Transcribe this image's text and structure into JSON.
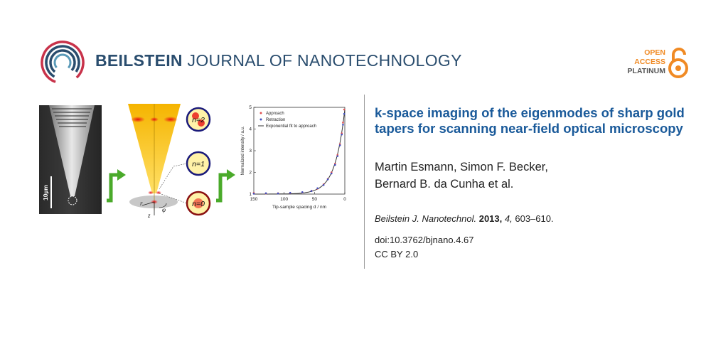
{
  "header": {
    "journal_bold": "BEILSTEIN",
    "journal_rest": "JOURNAL OF NANOTECHNOLOGY",
    "oa_line1": "OPEN",
    "oa_line2": "ACCESS",
    "oa_line3": "PLATINUM"
  },
  "article": {
    "title": "k-space imaging of the eigenmodes of sharp gold tapers for scanning near-field optical microscopy",
    "authors_line1": "Martin Esmann, Simon F. Becker,",
    "authors_line2": "Bernard B. da Cunha et al.",
    "citation_journal": "Beilstein J. Nanotechnol.",
    "citation_year": "2013,",
    "citation_volume": "4,",
    "citation_pages": "603–610.",
    "doi": "doi:10.3762/bjnano.4.67",
    "license": "CC BY 2.0"
  },
  "figure": {
    "sem_scale": "10µm",
    "mode_labels": [
      "n=2",
      "n=1",
      "n=0"
    ],
    "axis_r": "r",
    "axis_z": "z",
    "axis_phi": "φ"
  },
  "colors": {
    "journal_blue": "#2a4d6e",
    "title_blue": "#1a5a9a",
    "oa_orange": "#f08a24",
    "arrow_green": "#4aaa2a"
  },
  "chart_data": {
    "type": "scatter",
    "xlabel": "Tip-sample spacing d / nm",
    "ylabel": "Normalized intensity / a.u.",
    "xlim": [
      150,
      0
    ],
    "ylim": [
      1,
      5
    ],
    "x_ticks": [
      "150",
      "100",
      "50",
      "0"
    ],
    "y_ticks": [
      "1",
      "2",
      "3",
      "4",
      "5"
    ],
    "legend": [
      "Approach",
      "Retraction",
      "Exponential fit to approach"
    ],
    "legend_position": "top-left",
    "series": [
      {
        "name": "Approach",
        "color": "#e05050",
        "x": [
          150,
          130,
          110,
          90,
          70,
          55,
          45,
          35,
          28,
          22,
          16,
          12,
          8,
          5,
          3,
          1
        ],
        "y": [
          1.05,
          1.03,
          1.04,
          1.05,
          1.08,
          1.15,
          1.25,
          1.45,
          1.7,
          2.0,
          2.4,
          2.8,
          3.3,
          3.8,
          4.3,
          4.9
        ]
      },
      {
        "name": "Retraction",
        "color": "#4050c0",
        "x": [
          150,
          130,
          110,
          90,
          70,
          55,
          45,
          35,
          28,
          22,
          16,
          12,
          8,
          5,
          3,
          1
        ],
        "y": [
          1.02,
          1.04,
          1.03,
          1.06,
          1.09,
          1.14,
          1.27,
          1.42,
          1.68,
          1.95,
          2.35,
          2.75,
          3.25,
          3.75,
          4.2,
          4.7
        ]
      },
      {
        "name": "Exponential fit to approach",
        "color": "#333333",
        "fit": "exponential",
        "y0": 1.0,
        "amp": 3.9,
        "decay_nm": 16
      }
    ]
  }
}
